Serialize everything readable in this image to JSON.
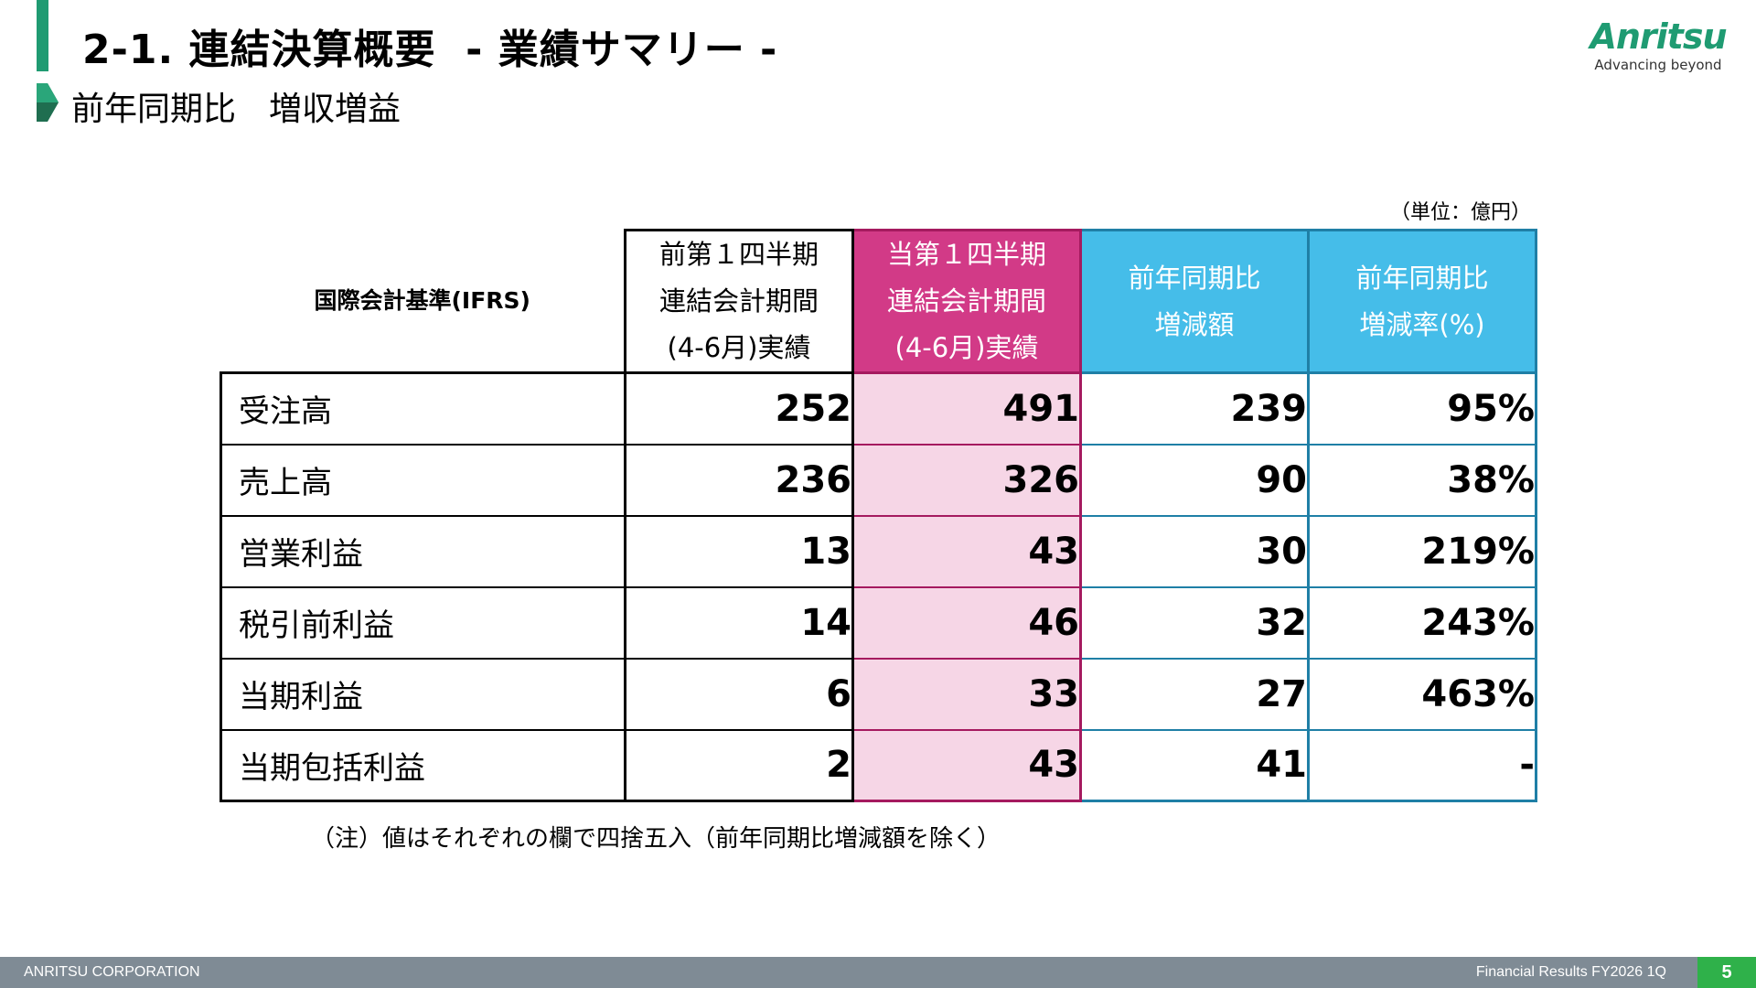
{
  "header": {
    "title": "2-1. 連結決算概要  - 業績サマリー -",
    "subtitle": "前年同期比　増収増益"
  },
  "logo": {
    "name": "Anritsu",
    "tagline": "Advancing beyond"
  },
  "unit": "（単位：億円）",
  "table": {
    "header_label": "国際会計基準(IFRS)",
    "columns": [
      {
        "lines": [
          "前第１四半期",
          "連結会計期間",
          "(4-6月)実績"
        ]
      },
      {
        "lines": [
          "当第１四半期",
          "連結会計期間",
          "(4-6月)実績"
        ]
      },
      {
        "lines": [
          "前年同期比",
          "増減額"
        ]
      },
      {
        "lines": [
          "前年同期比",
          "増減率(%)"
        ]
      }
    ],
    "rows": [
      {
        "label": "受注高",
        "prev": "252",
        "cur": "491",
        "diff": "239",
        "rate": "95%"
      },
      {
        "label": "売上高",
        "prev": "236",
        "cur": "326",
        "diff": "90",
        "rate": "38%"
      },
      {
        "label": "営業利益",
        "prev": "13",
        "cur": "43",
        "diff": "30",
        "rate": "219%"
      },
      {
        "label": "税引前利益",
        "prev": "14",
        "cur": "46",
        "diff": "32",
        "rate": "243%"
      },
      {
        "label": "当期利益",
        "prev": "6",
        "cur": "33",
        "diff": "27",
        "rate": "463%"
      },
      {
        "label": "当期包括利益",
        "prev": "2",
        "cur": "43",
        "diff": "41",
        "rate": "-"
      }
    ]
  },
  "note": "（注）値はそれぞれの欄で四捨五入（前年同期比増減額を除く）",
  "footer": {
    "company": "ANRITSU CORPORATION",
    "report": "Financial Results FY2026 1Q",
    "page": "5"
  },
  "colors": {
    "brand_green": "#1f9b72",
    "current_header": "#d23a87",
    "current_fill": "#f6d6e6",
    "diff_header": "#45bde9",
    "footer_bar": "#7f8b95",
    "page_badge": "#2fb14a"
  }
}
